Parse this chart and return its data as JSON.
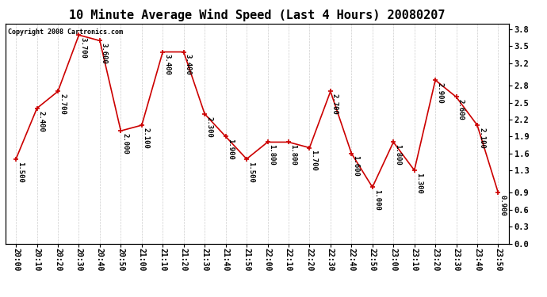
{
  "title": "10 Minute Average Wind Speed (Last 4 Hours) 20080207",
  "copyright": "Copyright 2008 Cartronics.com",
  "x_labels": [
    "20:00",
    "20:10",
    "20:20",
    "20:30",
    "20:40",
    "20:50",
    "21:00",
    "21:10",
    "21:20",
    "21:30",
    "21:40",
    "21:50",
    "22:00",
    "22:10",
    "22:20",
    "22:30",
    "22:40",
    "22:50",
    "23:00",
    "23:10",
    "23:20",
    "23:30",
    "23:40",
    "23:50"
  ],
  "y_values": [
    1.5,
    2.4,
    2.7,
    3.7,
    3.6,
    2.0,
    2.1,
    3.4,
    3.4,
    2.3,
    1.9,
    1.5,
    1.8,
    1.8,
    1.7,
    2.7,
    1.6,
    1.0,
    1.8,
    1.3,
    2.9,
    2.6,
    2.1,
    0.9
  ],
  "point_labels": [
    "1.500",
    "2.400",
    "2.700",
    "3.700",
    "3.600",
    "2.000",
    "2.100",
    "3.400",
    "3.400",
    "2.300",
    "1.900",
    "1.500",
    "1.800",
    "1.800",
    "1.700",
    "2.700",
    "1.600",
    "1.000",
    "1.800",
    "1.300",
    "2.900",
    "2.600",
    "2.100",
    "0.900"
  ],
  "line_color": "#cc0000",
  "marker_color": "#cc0000",
  "background_color": "#ffffff",
  "grid_color": "#c8c8c8",
  "ylim": [
    0.0,
    3.9
  ],
  "yticks": [
    0.0,
    0.3,
    0.6,
    0.9,
    1.3,
    1.6,
    1.9,
    2.2,
    2.5,
    2.8,
    3.2,
    3.5,
    3.8
  ],
  "title_fontsize": 11,
  "tick_fontsize": 7,
  "label_fontsize": 6.5,
  "copyright_fontsize": 6
}
